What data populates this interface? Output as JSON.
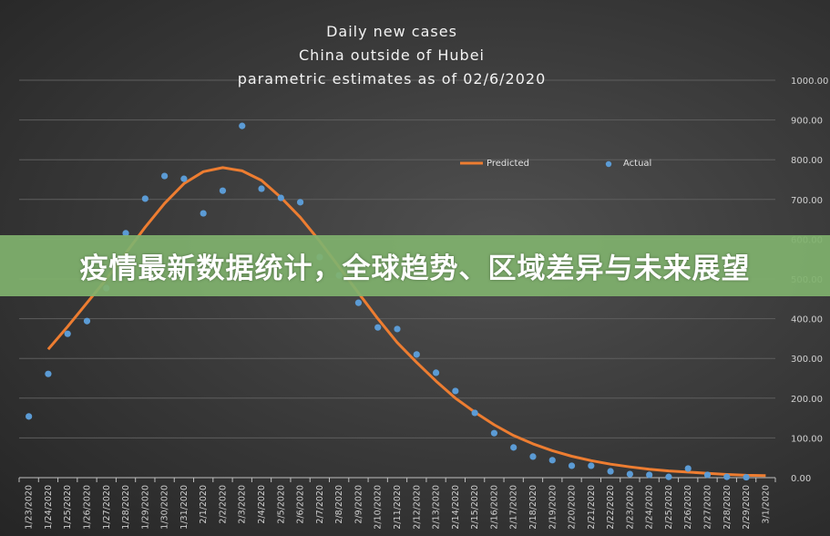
{
  "chart_data": {
    "type": "line",
    "title": [
      "Daily new cases",
      "China outside of Hubei",
      "parametric estimates as of 02/6/2020"
    ],
    "categories": [
      "1/23/2020",
      "1/24/2020",
      "1/25/2020",
      "1/26/2020",
      "1/27/2020",
      "1/28/2020",
      "1/29/2020",
      "1/30/2020",
      "1/31/2020",
      "2/1/2020",
      "2/2/2020",
      "2/3/2020",
      "2/4/2020",
      "2/5/2020",
      "2/6/2020",
      "2/7/2020",
      "2/8/2020",
      "2/9/2020",
      "2/10/2020",
      "2/11/2020",
      "2/12/2020",
      "2/13/2020",
      "2/14/2020",
      "2/15/2020",
      "2/16/2020",
      "2/17/2020",
      "2/18/2020",
      "2/19/2020",
      "2/20/2020",
      "2/21/2020",
      "2/22/2020",
      "2/23/2020",
      "2/24/2020",
      "2/25/2020",
      "2/26/2020",
      "2/27/2020",
      "2/28/2020",
      "2/29/2020",
      "3/1/2020"
    ],
    "series": [
      {
        "name": "Predicted",
        "kind": "line",
        "color": "#ed7d31",
        "values": [
          null,
          323,
          380,
          440,
          500,
          565,
          630,
          690,
          740,
          770,
          780,
          772,
          748,
          705,
          655,
          595,
          530,
          465,
          400,
          340,
          290,
          243,
          200,
          165,
          133,
          106,
          85,
          68,
          54,
          43,
          34,
          27,
          21,
          17,
          14,
          11,
          8,
          6,
          5
        ]
      },
      {
        "name": "Actual",
        "kind": "scatter",
        "color": "#5b9bd5",
        "values": [
          154,
          261,
          362,
          394,
          477,
          615,
          702,
          759,
          752,
          665,
          722,
          885,
          727,
          704,
          693,
          555,
          509,
          440,
          378,
          374,
          310,
          264,
          218,
          163,
          112,
          76,
          53,
          44,
          30,
          30,
          16,
          9,
          7,
          2,
          23,
          7,
          2,
          1,
          null
        ]
      }
    ],
    "ylim": [
      0,
      1000
    ],
    "yticks": [
      "0.00",
      "100.00",
      "200.00",
      "300.00",
      "400.00",
      "500.00",
      "600.00",
      "700.00",
      "800.00",
      "900.00",
      "1000.00"
    ],
    "y_axis_side": "right",
    "grid": true,
    "legend": "top-right"
  },
  "banner": {
    "text": "疫情最新数据统计，全球趋势、区域差异与未来展望"
  }
}
